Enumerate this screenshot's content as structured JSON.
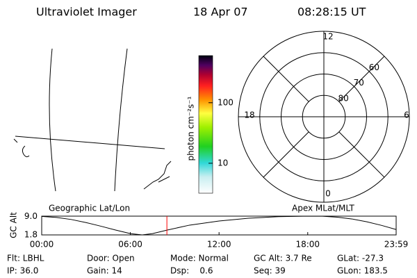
{
  "header": {
    "title": "Ultraviolet Imager",
    "date": "18 Apr 07",
    "time": "08:28:15 UT"
  },
  "map": {
    "label": "Geographic Lat/Lon"
  },
  "colorbar": {
    "label": "photon cm⁻²s⁻¹",
    "log": true,
    "range": [
      3.2,
      600
    ],
    "ticks": [
      10,
      100
    ]
  },
  "polar": {
    "label": "Apex MLat/MLT",
    "rlim": [
      90,
      50
    ],
    "rings": [
      60,
      70,
      80
    ],
    "mlt_labels": [
      12,
      6,
      0,
      18
    ]
  },
  "chart_data": {
    "type": "line",
    "ylabel": "GC Alt",
    "x": [
      0,
      1,
      2,
      3,
      4,
      5,
      6,
      6.8,
      7.5,
      8.5,
      10,
      12,
      14,
      16,
      18,
      19,
      20,
      21,
      22,
      23,
      23.983
    ],
    "series": [
      {
        "color": "#000000",
        "values": [
          9.0,
          8.6,
          7.8,
          6.6,
          5.2,
          3.7,
          2.3,
          1.8,
          2.3,
          3.7,
          5.6,
          7.2,
          8.3,
          8.9,
          9.1,
          9.05,
          8.7,
          8.0,
          6.9,
          5.5,
          3.9
        ]
      }
    ],
    "marker_x": 8.471,
    "marker_color": "#ff0000",
    "xlim": [
      0,
      23.983
    ],
    "xticks": [
      {
        "value": 0,
        "label": "00:00"
      },
      {
        "value": 6,
        "label": "06:00"
      },
      {
        "value": 12,
        "label": "12:00"
      },
      {
        "value": 18,
        "label": "18:00"
      },
      {
        "value": 23.983,
        "label": "23:59"
      }
    ],
    "ylim": [
      1.8,
      9.1
    ],
    "yticks": [
      1.8,
      {
        "value": 9,
        "label": "9.0"
      }
    ]
  },
  "info": [
    [
      "Flt: LBHL",
      "IP: 36.0"
    ],
    [
      "Door: Open",
      "Gain: 14"
    ],
    [
      "Mode: Normal",
      "Dsp:    0.6"
    ],
    [
      "GC Alt: 3.7 Re",
      "Seq: 39"
    ],
    [
      "GLat: -27.3",
      "GLon: 183.5"
    ]
  ]
}
